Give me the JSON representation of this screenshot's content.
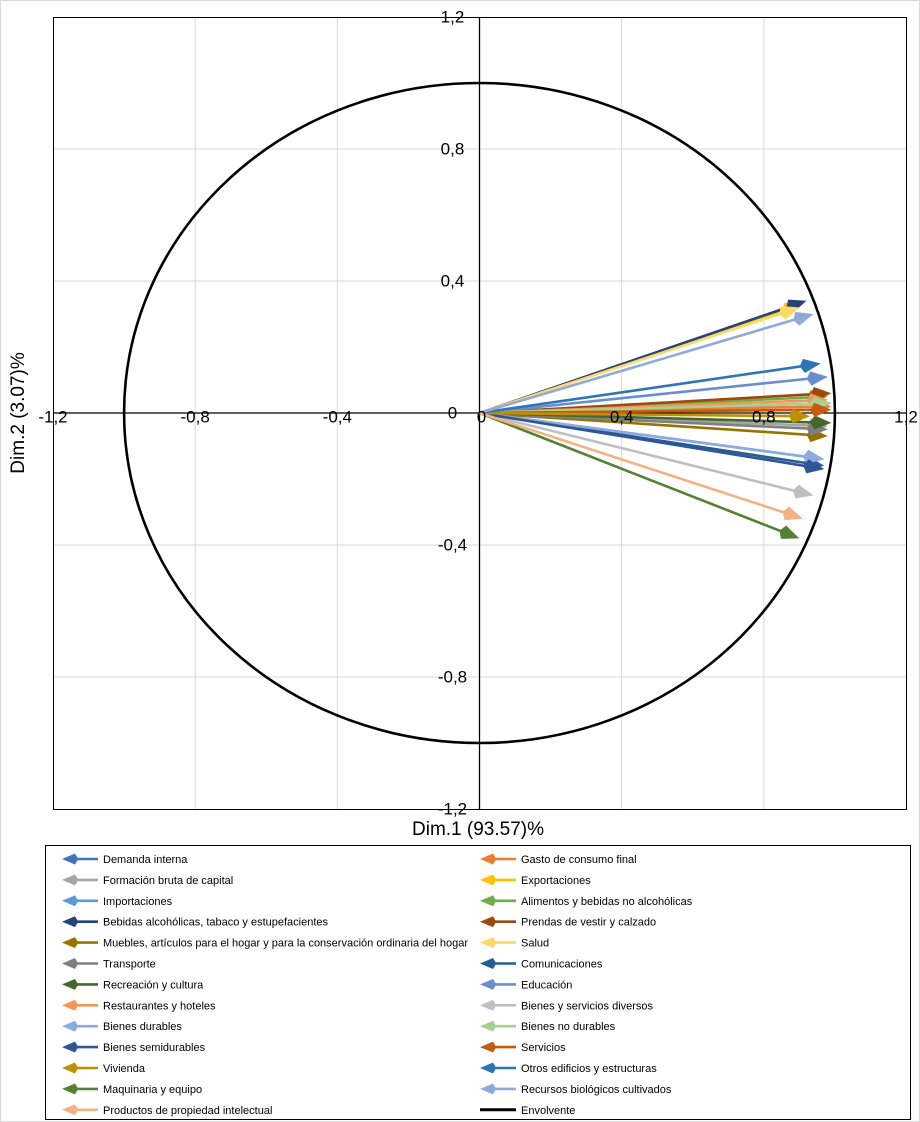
{
  "chart_data": {
    "type": "vector-plot",
    "xlabel": "Dim.1 (93.57)%",
    "ylabel": "Dim.2 (3.07)%",
    "xlim": [
      -1.2,
      1.2
    ],
    "ylim": [
      -1.2,
      1.2
    ],
    "ticks": [
      {
        "value": -1.2,
        "label": "-1,2"
      },
      {
        "value": -0.8,
        "label": "-0,8"
      },
      {
        "value": -0.4,
        "label": "-0,4"
      },
      {
        "value": 0,
        "label": "0"
      },
      {
        "value": 0.4,
        "label": "0,4"
      },
      {
        "value": 0.8,
        "label": "0,8"
      },
      {
        "value": 1.2,
        "label": "1,2"
      }
    ],
    "grid": true,
    "legend_position": "bottom",
    "envelope": {
      "name": "Envolvente",
      "radius": 1,
      "color": "#000000"
    },
    "series": [
      {
        "name": "Demanda interna",
        "x": 0.99,
        "y": 0.03,
        "color": "#4472c4"
      },
      {
        "name": "Gasto de consumo final",
        "x": 0.99,
        "y": 0.02,
        "color": "#ed7d31"
      },
      {
        "name": "Formación bruta de capital",
        "x": 0.98,
        "y": -0.04,
        "color": "#a5a5a5"
      },
      {
        "name": "Exportaciones",
        "x": 0.91,
        "y": 0.33,
        "color": "#ffc000"
      },
      {
        "name": "Importaciones",
        "x": 0.97,
        "y": -0.14,
        "color": "#5b9bd5"
      },
      {
        "name": "Alimentos y bebidas no alcohólicas",
        "x": 0.98,
        "y": 0.05,
        "color": "#70ad47"
      },
      {
        "name": "Bebidas alcohólicas, tabaco y estupefacientes",
        "x": 0.92,
        "y": 0.34,
        "color": "#264478"
      },
      {
        "name": "Prendas de vestir y calzado",
        "x": 0.99,
        "y": 0.06,
        "color": "#9e480e"
      },
      {
        "name": "Muebles, artículos para el hogar y para la conservación ordinaria del hogar",
        "x": 0.98,
        "y": -0.07,
        "color": "#997300"
      },
      {
        "name": "Salud",
        "x": 0.9,
        "y": 0.32,
        "color": "#ffd966"
      },
      {
        "name": "Transporte",
        "x": 0.98,
        "y": -0.05,
        "color": "#7f7f7f"
      },
      {
        "name": "Comunicaciones",
        "x": 0.97,
        "y": -0.16,
        "color": "#255e91"
      },
      {
        "name": "Recreación y cultura",
        "x": 0.99,
        "y": -0.03,
        "color": "#43682b"
      },
      {
        "name": "Educación",
        "x": 0.98,
        "y": 0.11,
        "color": "#698ed0"
      },
      {
        "name": "Restaurantes y hoteles",
        "x": 0.98,
        "y": 0.04,
        "color": "#f1975a"
      },
      {
        "name": "Bienes y servicios diversos",
        "x": 0.94,
        "y": -0.25,
        "color": "#c0c0c0"
      },
      {
        "name": "Bienes durables",
        "x": 0.97,
        "y": -0.14,
        "color": "#8faadc"
      },
      {
        "name": "Bienes no durables",
        "x": 0.99,
        "y": 0.03,
        "color": "#a9d18e"
      },
      {
        "name": "Bienes semidurables",
        "x": 0.97,
        "y": -0.17,
        "color": "#2f5597"
      },
      {
        "name": "Servicios",
        "x": 0.99,
        "y": 0.01,
        "color": "#c55a11"
      },
      {
        "name": "Vivienda",
        "x": 0.93,
        "y": -0.01,
        "color": "#bf9000"
      },
      {
        "name": "Otros edificios y estructuras",
        "x": 0.96,
        "y": 0.15,
        "color": "#2e75b6"
      },
      {
        "name": "Maquinaria y equipo",
        "x": 0.9,
        "y": -0.38,
        "color": "#548235"
      },
      {
        "name": "Recursos biológicos cultivados",
        "x": 0.94,
        "y": 0.3,
        "color": "#8ea9db"
      },
      {
        "name": "Productos de propiedad intelectual",
        "x": 0.91,
        "y": -0.32,
        "color": "#f4b183"
      }
    ]
  }
}
